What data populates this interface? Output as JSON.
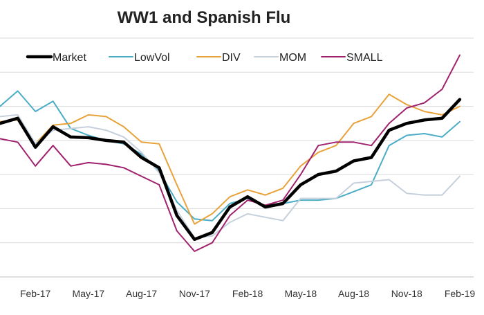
{
  "chart_data": {
    "type": "line",
    "title": "WW1 and Spanish Flu",
    "xlabel": "",
    "ylabel": "",
    "grid": true,
    "legend_position": "top",
    "x_ticks": [
      "Feb-17",
      "May-17",
      "Aug-17",
      "Nov-17",
      "Feb-18",
      "May-18",
      "Aug-18",
      "Nov-18",
      "Feb-19"
    ],
    "x": [
      "Dec-16",
      "Jan-17",
      "Feb-17",
      "Mar-17",
      "Apr-17",
      "May-17",
      "Jun-17",
      "Jul-17",
      "Aug-17",
      "Sep-17",
      "Oct-17",
      "Nov-17",
      "Dec-17",
      "Jan-18",
      "Feb-18",
      "Mar-18",
      "Apr-18",
      "May-18",
      "Jun-18",
      "Jul-18",
      "Aug-18",
      "Sep-18",
      "Oct-18",
      "Nov-18",
      "Dec-18",
      "Jan-19",
      "Feb-19"
    ],
    "ylim": [
      0,
      7
    ],
    "series": [
      {
        "name": "Market",
        "color": "#000000",
        "width": 4.5,
        "values": [
          4.5,
          4.65,
          3.8,
          4.4,
          4.1,
          4.08,
          4.0,
          3.95,
          3.5,
          3.2,
          1.8,
          1.1,
          1.3,
          2.05,
          2.35,
          2.05,
          2.15,
          2.7,
          3.0,
          3.1,
          3.4,
          3.5,
          4.3,
          4.5,
          4.6,
          4.65,
          5.2
        ]
      },
      {
        "name": "LowVol",
        "color": "#4bacc6",
        "width": 2,
        "values": [
          5.0,
          5.45,
          4.85,
          5.15,
          4.35,
          4.15,
          4.0,
          3.9,
          3.6,
          3.1,
          2.2,
          1.7,
          1.65,
          2.15,
          2.3,
          2.05,
          2.15,
          2.25,
          2.25,
          2.3,
          2.5,
          2.7,
          3.85,
          4.15,
          4.2,
          4.1,
          4.55
        ]
      },
      {
        "name": "DIV",
        "color": "#e8a23a",
        "width": 2,
        "values": [
          4.55,
          4.6,
          3.9,
          4.45,
          4.5,
          4.75,
          4.7,
          4.4,
          3.95,
          3.9,
          2.7,
          1.55,
          1.85,
          2.35,
          2.55,
          2.4,
          2.6,
          3.25,
          3.65,
          3.85,
          4.5,
          4.7,
          5.35,
          5.05,
          4.85,
          4.75,
          5.0
        ]
      },
      {
        "name": "MOM",
        "color": "#c5d0dc",
        "width": 2,
        "values": [
          4.7,
          4.75,
          3.9,
          4.3,
          4.35,
          4.4,
          4.3,
          4.1,
          3.65,
          3.05,
          1.95,
          1.15,
          1.2,
          1.6,
          1.85,
          1.75,
          1.65,
          2.3,
          2.3,
          2.3,
          2.75,
          2.8,
          2.85,
          2.45,
          2.4,
          2.4,
          2.95
        ]
      },
      {
        "name": "SMALL",
        "color": "#a0226e",
        "width": 2,
        "values": [
          4.05,
          3.95,
          3.25,
          3.85,
          3.25,
          3.35,
          3.3,
          3.2,
          2.95,
          2.7,
          1.35,
          0.75,
          1.0,
          1.8,
          2.25,
          2.1,
          2.25,
          3.0,
          3.85,
          3.95,
          3.95,
          3.85,
          4.5,
          4.95,
          5.1,
          5.5,
          6.5
        ]
      }
    ]
  }
}
